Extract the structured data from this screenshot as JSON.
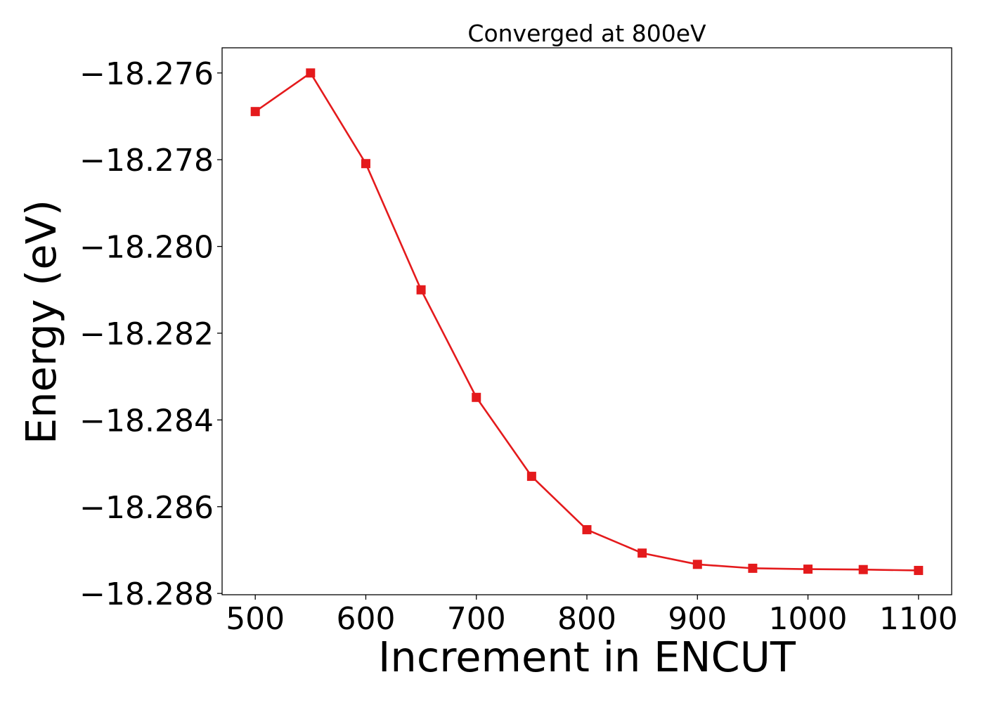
{
  "chart_data": {
    "type": "line",
    "title": "Converged at 800eV",
    "xlabel": "Increment in ENCUT",
    "ylabel": "Energy (eV)",
    "xlim": [
      470,
      1130
    ],
    "ylim": [
      -18.28803,
      -18.27542
    ],
    "x_ticks": [
      500,
      600,
      700,
      800,
      900,
      1000,
      1100
    ],
    "x_tick_labels": [
      "500",
      "600",
      "700",
      "800",
      "900",
      "1000",
      "1100"
    ],
    "y_ticks": [
      -18.276,
      -18.278,
      -18.28,
      -18.282,
      -18.284,
      -18.286,
      -18.288
    ],
    "y_tick_labels": [
      "−18.276",
      "−18.278",
      "−18.280",
      "−18.282",
      "−18.284",
      "−18.286",
      "−18.288"
    ],
    "grid": false,
    "legend": "none",
    "series": [
      {
        "color": "#e41a1c",
        "marker": "square",
        "x": [
          500,
          550,
          600,
          650,
          700,
          750,
          800,
          850,
          900,
          950,
          1000,
          1050,
          1100
        ],
        "y": [
          -18.27689,
          -18.276,
          -18.27809,
          -18.281,
          -18.28348,
          -18.2853,
          -18.28653,
          -18.28707,
          -18.28733,
          -18.28742,
          -18.28744,
          -18.28745,
          -18.28747
        ]
      }
    ]
  }
}
